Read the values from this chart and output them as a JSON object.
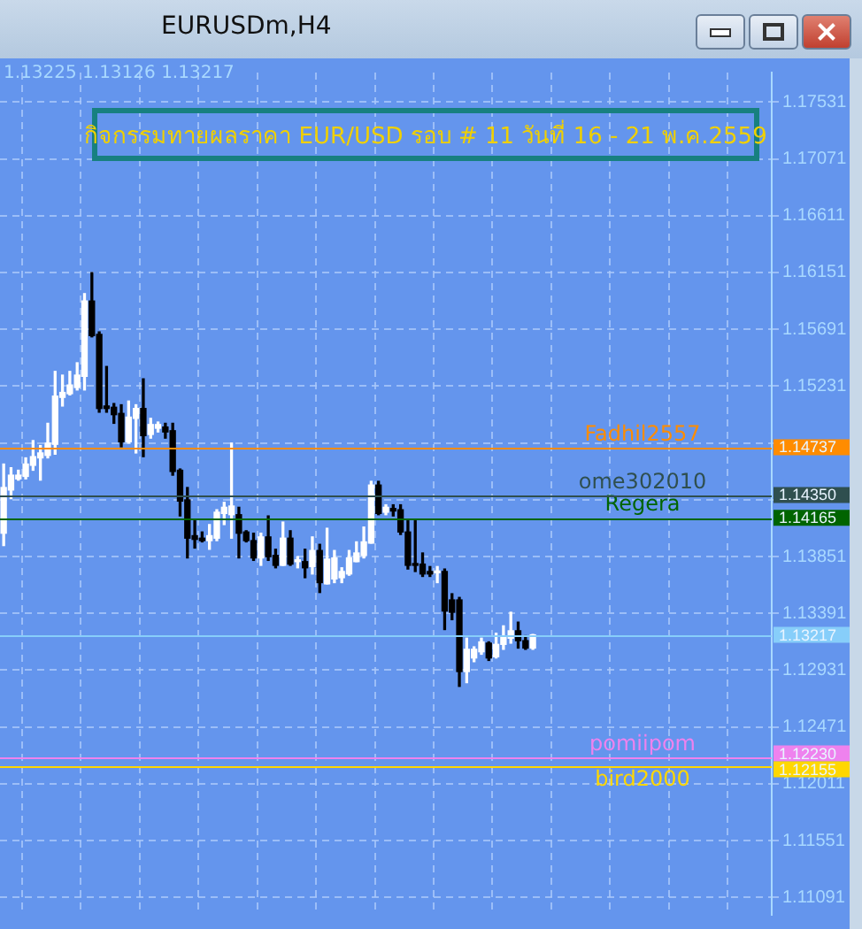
{
  "chart_data": {
    "type": "candlestick",
    "title": "EURUSDm,H4",
    "subtitle": "กิจกรรมทายผลราคา EUR/USD รอบ # 11 วันที่ 16 - 21 พ.ค.2559",
    "annotations": [
      "1.13225 1.13126 1.13217",
      {
        "text": "Fadhil2557",
        "y": 1.14737
      },
      {
        "text": "ome302010",
        "y": 1.1435
      },
      {
        "text": "Regera",
        "y": 1.14165
      },
      {
        "text": "pomiipom",
        "y": 1.1223
      },
      {
        "text": "bird2000",
        "y": 1.12155
      }
    ],
    "categories": [
      null,
      null,
      null,
      null,
      null,
      null,
      null,
      null,
      null,
      null,
      null,
      null,
      null,
      null,
      null,
      null,
      null,
      null,
      null,
      null,
      null,
      null,
      null,
      null,
      null,
      null,
      null,
      null,
      null,
      null,
      null,
      null,
      null,
      null,
      null,
      null,
      null,
      null,
      null,
      null,
      null,
      null,
      null,
      null,
      null,
      null,
      null,
      null,
      null,
      null,
      null,
      null,
      null,
      null,
      null,
      null,
      null,
      null,
      null,
      null,
      null,
      null,
      null,
      null,
      null,
      null,
      null,
      null,
      null,
      null,
      null,
      null,
      null,
      null,
      null,
      null,
      null,
      null,
      null,
      null,
      null,
      null,
      null,
      null,
      null,
      null,
      null,
      null,
      null,
      null,
      null,
      null,
      null,
      null,
      null,
      null,
      null,
      null,
      null,
      null,
      null,
      null,
      null,
      null,
      null
    ],
    "colors": [
      "#ffffff",
      "#ffffff",
      "#ffffff",
      "#ffffff",
      "#ffffff",
      "#ffffff",
      "#ffffff",
      "#ffffff",
      "#ffffff",
      "#ffffff",
      "#ffffff",
      "#ffffff",
      "#000000",
      "#000000",
      "#000000",
      "#000000",
      "#000000",
      "#ffffff",
      "#ffffff",
      "#000000",
      "#ffffff",
      "#ffffff",
      "#000000",
      "#000000",
      "#000000",
      "#000000",
      "#000000",
      "#000000",
      "#ffffff",
      "#ffffff",
      "#ffffff",
      "#ffffff",
      "#000000",
      "#000000",
      "#000000",
      "#ffffff",
      "#000000",
      "#000000",
      "#ffffff",
      "#000000",
      "#ffffff",
      "#000000",
      "#ffffff",
      "#000000",
      "#ffffff",
      "#ffffff",
      "#ffffff",
      "#ffffff",
      "#ffffff",
      "#ffffff",
      "#ffffff",
      "#000000",
      "#ffffff",
      "#000000",
      "#000000",
      "#000000",
      "#000000",
      "#000000",
      "#000000",
      "#ffffff",
      "#000000",
      "#000000",
      "#000000",
      "#ffffff",
      "#ffffff",
      "#ffffff",
      "#000000",
      "#ffffff",
      "#ffffff",
      "#ffffff",
      "#000000",
      "#000000",
      "#ffffff",
      null,
      null,
      null,
      null,
      null,
      null,
      null,
      null,
      null,
      null,
      null,
      null,
      null,
      null,
      null,
      null,
      null,
      null,
      null,
      null,
      null,
      null,
      null,
      null,
      null,
      null,
      null,
      null,
      null,
      null,
      null,
      null
    ],
    "ohlc": [
      [
        1.1404,
        1.146,
        1.1394,
        1.1441
      ],
      [
        1.1439,
        1.1457,
        1.1432,
        1.1451
      ],
      [
        1.1448,
        1.1455,
        1.1447,
        1.1451
      ],
      [
        1.145,
        1.1465,
        1.1448,
        1.146
      ],
      [
        1.1459,
        1.1479,
        1.1455,
        1.1466
      ],
      [
        1.1465,
        1.1475,
        1.1447,
        1.1469
      ],
      [
        1.1467,
        1.1493,
        1.1465,
        1.1477
      ],
      [
        1.1476,
        1.1535,
        1.1468,
        1.1515
      ],
      [
        1.1514,
        1.1532,
        1.1507,
        1.1518
      ],
      [
        1.1517,
        1.1535,
        1.1516,
        1.1524
      ],
      [
        1.1522,
        1.1542,
        1.152,
        1.1532
      ],
      [
        1.1531,
        1.1598,
        1.152,
        1.1592
      ],
      [
        1.1592,
        1.1615,
        1.1563,
        1.1564
      ],
      [
        1.1565,
        1.1567,
        1.1502,
        1.1505
      ],
      [
        1.1507,
        1.1539,
        1.1502,
        1.1505
      ],
      [
        1.1506,
        1.1509,
        1.1493,
        1.15
      ],
      [
        1.1501,
        1.1508,
        1.1474,
        1.1478
      ],
      [
        1.1478,
        1.1511,
        1.1477,
        1.1498
      ],
      [
        1.1497,
        1.1508,
        1.1469,
        1.1505
      ],
      [
        1.1505,
        1.1529,
        1.1466,
        1.1483
      ],
      [
        1.1484,
        1.1497,
        1.1481,
        1.1492
      ],
      [
        1.1489,
        1.1494,
        1.1486,
        1.1492
      ],
      [
        1.149,
        1.1493,
        1.1481,
        1.1486
      ],
      [
        1.1487,
        1.1493,
        1.1451,
        1.1454
      ],
      [
        1.1455,
        1.1456,
        1.1418,
        1.143
      ],
      [
        1.1431,
        1.1441,
        1.1384,
        1.14
      ],
      [
        1.1402,
        1.1414,
        1.1392,
        1.1399
      ],
      [
        1.14,
        1.1405,
        1.1397,
        1.1398
      ],
      [
        1.1398,
        1.1411,
        1.1391,
        1.1402
      ],
      [
        1.14,
        1.1423,
        1.1398,
        1.1421
      ],
      [
        1.142,
        1.1429,
        1.1411,
        1.1425
      ],
      [
        1.1419,
        1.1477,
        1.14,
        1.1426
      ],
      [
        1.1419,
        1.1425,
        1.1384,
        1.1404
      ],
      [
        1.1405,
        1.1406,
        1.1397,
        1.1398
      ],
      [
        1.1398,
        1.1404,
        1.1382,
        1.1384
      ],
      [
        1.1384,
        1.1404,
        1.1378,
        1.1401
      ],
      [
        1.1401,
        1.1418,
        1.1382,
        1.1385
      ],
      [
        1.1386,
        1.1391,
        1.1376,
        1.1378
      ],
      [
        1.1378,
        1.1413,
        1.1378,
        1.14
      ],
      [
        1.14,
        1.1406,
        1.1378,
        1.1379
      ],
      [
        1.1381,
        1.1385,
        1.1376,
        1.1382
      ],
      [
        1.1381,
        1.1391,
        1.1368,
        1.1376
      ],
      [
        1.1377,
        1.1401,
        1.1371,
        1.139
      ],
      [
        1.139,
        1.1395,
        1.1356,
        1.1364
      ],
      [
        1.1363,
        1.1408,
        1.1363,
        1.1383
      ],
      [
        1.1367,
        1.139,
        1.1364,
        1.1384
      ],
      [
        1.1368,
        1.1376,
        1.1364,
        1.1373
      ],
      [
        1.1371,
        1.139,
        1.137,
        1.1384
      ],
      [
        1.1381,
        1.1397,
        1.1381,
        1.1388
      ],
      [
        1.1386,
        1.1409,
        1.1384,
        1.1397
      ],
      [
        1.1396,
        1.1446,
        1.1396,
        1.1443
      ],
      [
        1.1443,
        1.1446,
        1.1419,
        1.142
      ],
      [
        1.1421,
        1.1427,
        1.1419,
        1.1425
      ],
      [
        1.1424,
        1.1427,
        1.1418,
        1.1422
      ],
      [
        1.1423,
        1.1427,
        1.1403,
        1.1405
      ],
      [
        1.1405,
        1.1414,
        1.1375,
        1.1378
      ],
      [
        1.1379,
        1.1414,
        1.1373,
        1.1378
      ],
      [
        1.1379,
        1.1388,
        1.1369,
        1.1371
      ],
      [
        1.1373,
        1.1377,
        1.1369,
        1.1371
      ],
      [
        1.1372,
        1.1377,
        1.1364,
        1.1373
      ],
      [
        1.1373,
        1.1375,
        1.1326,
        1.1341
      ],
      [
        1.135,
        1.1355,
        1.1334,
        1.134
      ],
      [
        1.135,
        1.1352,
        1.128,
        1.1292
      ],
      [
        1.1292,
        1.1319,
        1.1283,
        1.131
      ],
      [
        1.1303,
        1.1312,
        1.13,
        1.131
      ],
      [
        1.1308,
        1.1319,
        1.1306,
        1.1316
      ],
      [
        1.1315,
        1.1316,
        1.1301,
        1.1303
      ],
      [
        1.1304,
        1.1323,
        1.1303,
        1.1314
      ],
      [
        1.1314,
        1.1329,
        1.131,
        1.132
      ],
      [
        1.1319,
        1.134,
        1.1315,
        1.1325
      ],
      [
        1.1325,
        1.1332,
        1.1311,
        1.1317
      ],
      [
        1.1317,
        1.1321,
        1.131,
        1.1311
      ],
      [
        1.1311,
        1.1322,
        1.131,
        1.13217
      ],
      null,
      null,
      null,
      null,
      null,
      null,
      null,
      null,
      null,
      null,
      null,
      null,
      null,
      null,
      null,
      null,
      null,
      null,
      null,
      null,
      null,
      null,
      null,
      null,
      null,
      null,
      null,
      null,
      null,
      null,
      null,
      null
    ],
    "ylim": [
      1.1095,
      1.1777
    ],
    "yticks": [
      1.17531,
      1.17071,
      1.16611,
      1.16151,
      1.15691,
      1.15231,
      {
        "value": 1.14771,
        "label": null
      },
      {
        "value": 1.14311,
        "label": null
      },
      1.13851,
      1.13391,
      1.12931,
      1.12471,
      1.12011,
      1.11551,
      1.11091
    ],
    "ref_lines": [
      {
        "axis": "y",
        "value": 1.14737,
        "label": "1.14737",
        "color": "#ff8c00"
      },
      {
        "axis": "y",
        "value": 1.1435,
        "label": "1.14350",
        "color": "#2f4f4f"
      },
      {
        "axis": "y",
        "value": 1.14165,
        "label": "1.14165",
        "color": "#006400"
      },
      {
        "axis": "y",
        "value": 1.13217,
        "label": "1.13217",
        "color": "#87cefa"
      },
      {
        "axis": "y",
        "value": 1.1223,
        "label": "1.12230",
        "color": "#ee82ee"
      },
      {
        "axis": "y",
        "value": 1.12155,
        "label": "1.12155",
        "color": "#ffd700"
      }
    ],
    "grid": true,
    "legend": false,
    "tick_labels": "y"
  }
}
